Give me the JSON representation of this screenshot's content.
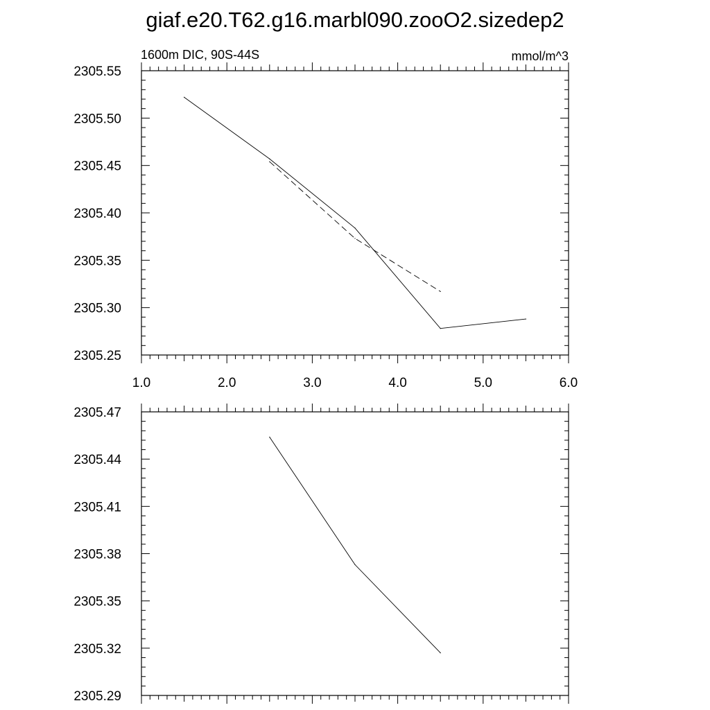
{
  "title": "giaf.e20.T62.g16.marbl090.zooO2.sizedep2",
  "chart_data": [
    {
      "type": "line",
      "title": "",
      "left_label": "1600m DIC, 90S-44S",
      "right_label": "mmol/m^3",
      "xlim": [
        1.0,
        6.0
      ],
      "ylim": [
        2305.25,
        2305.55
      ],
      "x_ticks": [
        "1.0",
        "2.0",
        "3.0",
        "4.0",
        "5.0",
        "6.0"
      ],
      "y_ticks": [
        "2305.25",
        "2305.30",
        "2305.35",
        "2305.40",
        "2305.45",
        "2305.50",
        "2305.55"
      ],
      "grid": false,
      "series": [
        {
          "style": "solid",
          "x": [
            1.5,
            2.5,
            3.5,
            4.5,
            5.5
          ],
          "y": [
            2305.522,
            2305.457,
            2305.384,
            2305.278,
            2305.288
          ]
        },
        {
          "style": "dashed",
          "x": [
            2.5,
            3.5,
            4.5
          ],
          "y": [
            2305.454,
            2305.373,
            2305.317
          ]
        }
      ]
    },
    {
      "type": "line",
      "title": "",
      "xlim": [
        1.0,
        6.0
      ],
      "ylim": [
        2305.29,
        2305.47
      ],
      "x_ticks": [],
      "y_ticks": [
        "2305.29",
        "2305.32",
        "2305.35",
        "2305.38",
        "2305.41",
        "2305.44",
        "2305.47"
      ],
      "grid": false,
      "series": [
        {
          "style": "solid",
          "x": [
            2.5,
            3.5,
            4.5
          ],
          "y": [
            2305.454,
            2305.373,
            2305.317
          ]
        }
      ]
    }
  ]
}
